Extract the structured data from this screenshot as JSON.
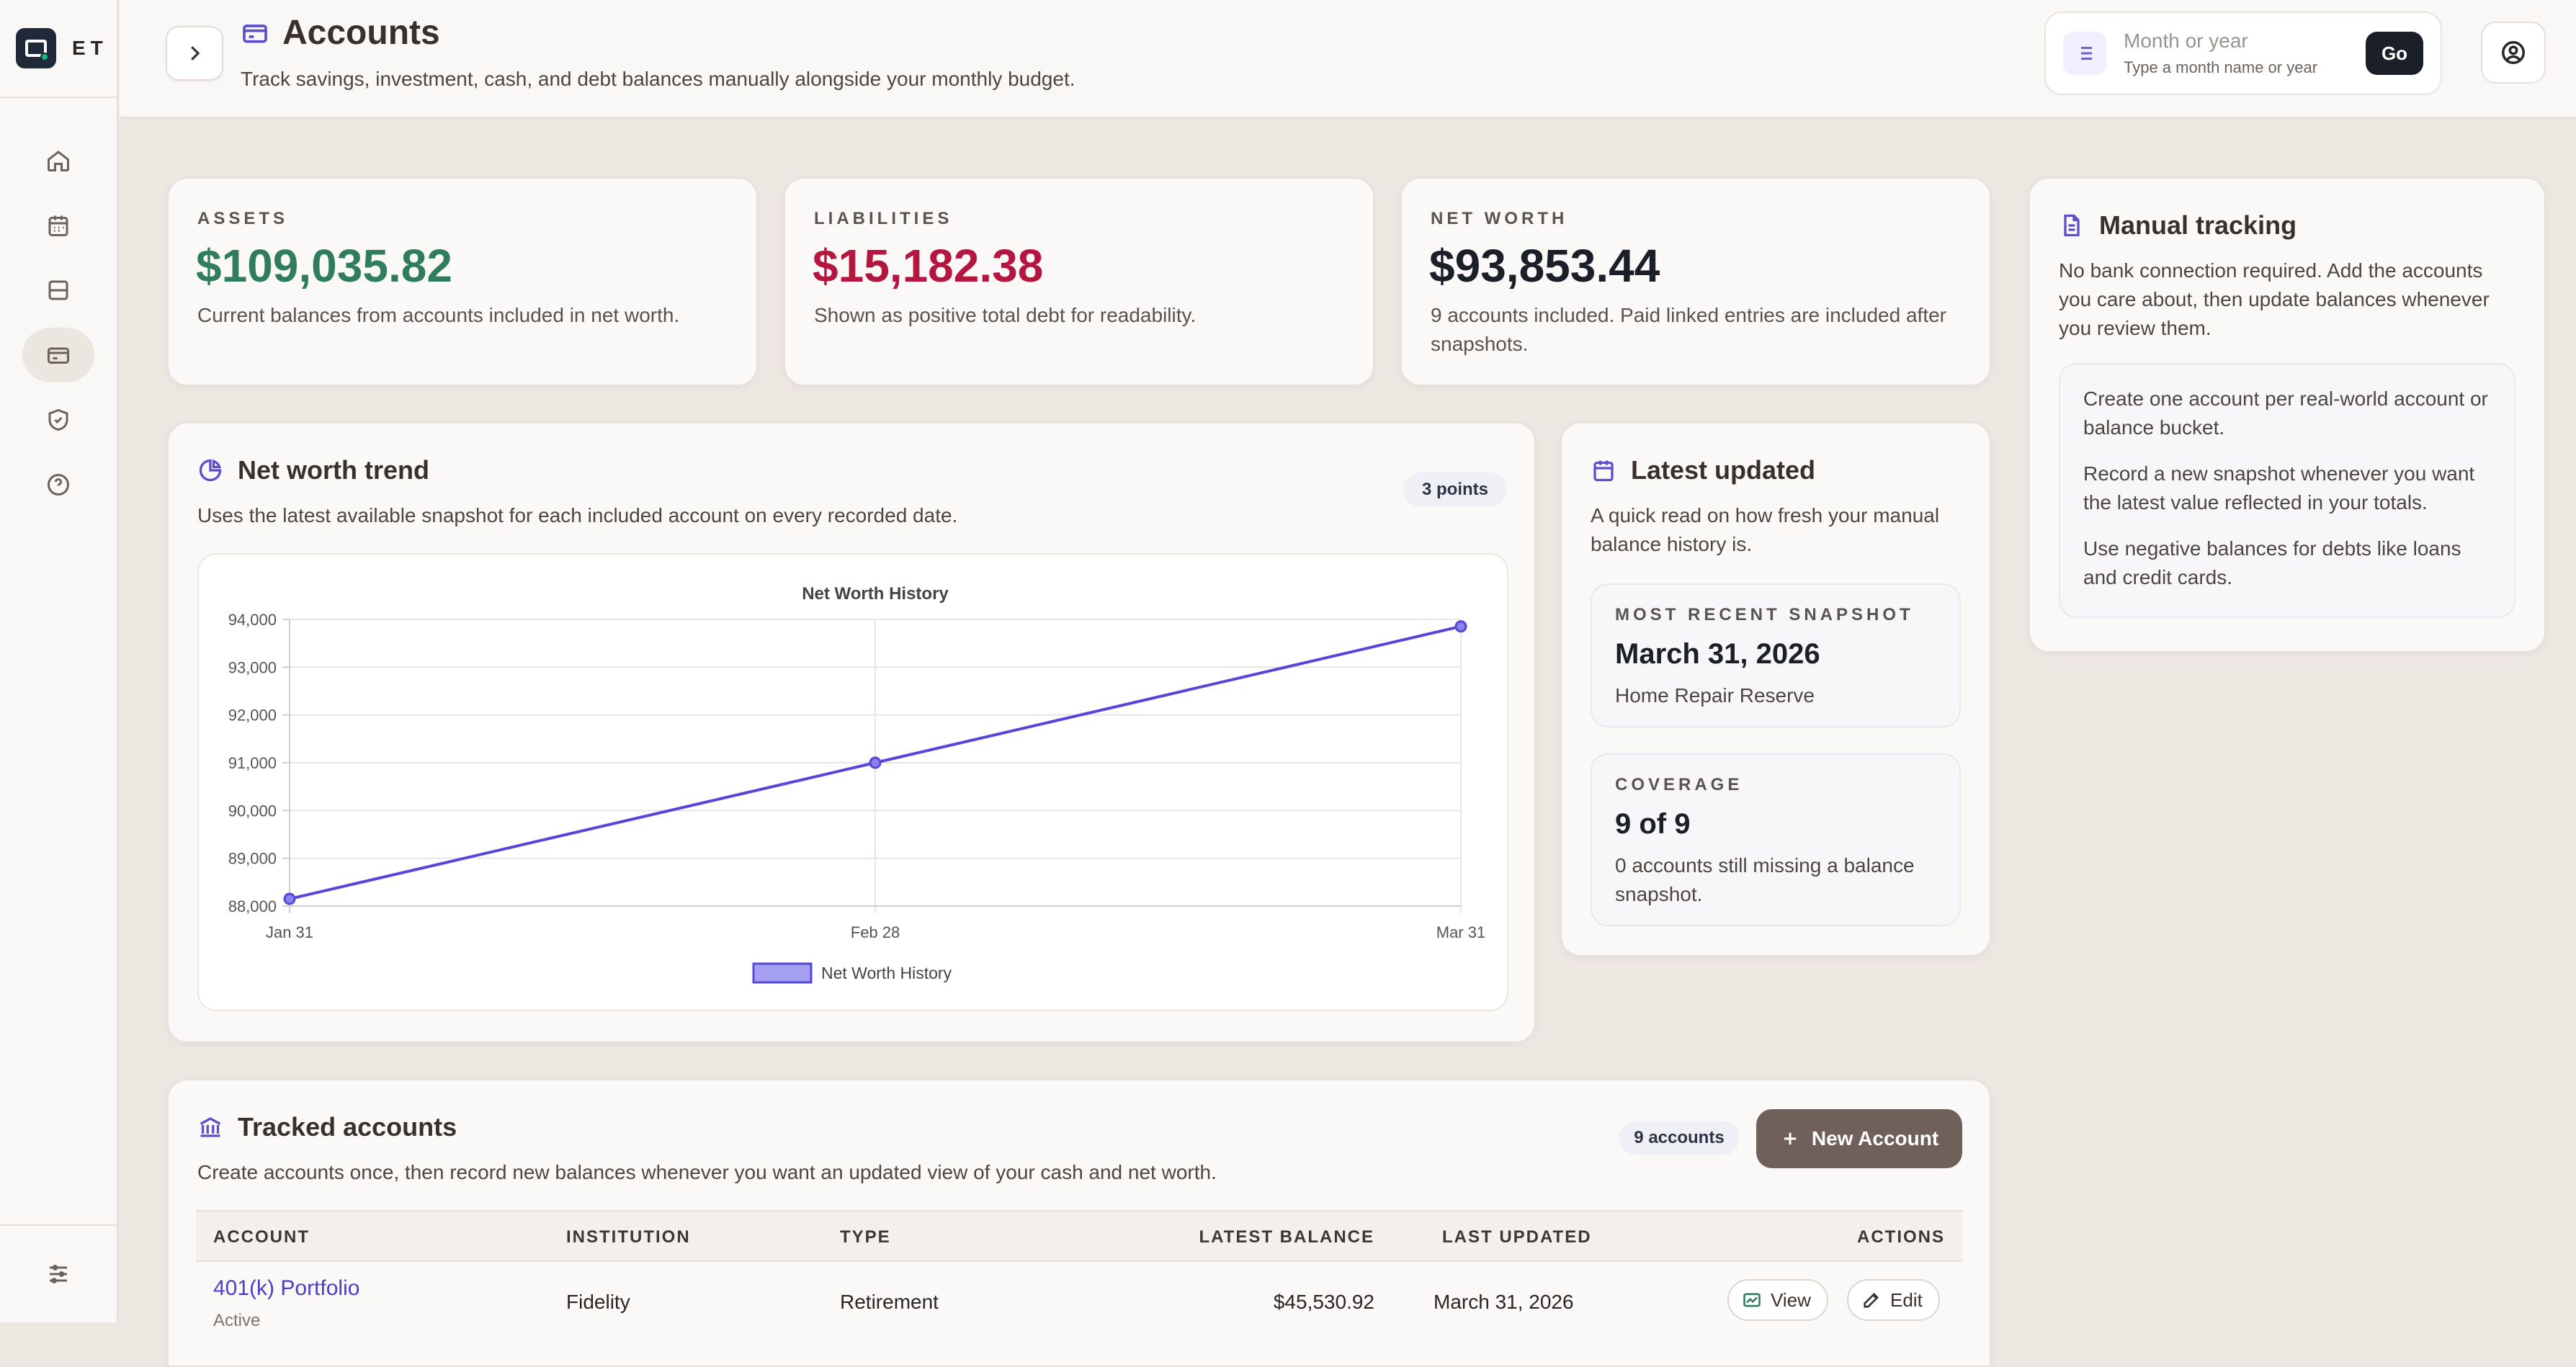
{
  "brand": {
    "name": "ET"
  },
  "sidebar": {
    "items": [
      {
        "icon": "home-icon"
      },
      {
        "icon": "calendar-icon"
      },
      {
        "icon": "inbox-icon"
      },
      {
        "icon": "credit-card-icon",
        "active": true
      },
      {
        "icon": "shield-check-icon"
      },
      {
        "icon": "help-circle-icon"
      }
    ],
    "footer_icon": "sliders-icon"
  },
  "header": {
    "title": "Accounts",
    "subtitle": "Track savings, investment, cash, and debt balances manually alongside your monthly budget.",
    "period_placeholder": "Month or year",
    "period_hint": "Type a month name or year",
    "go_label": "Go"
  },
  "stats": {
    "assets": {
      "label": "ASSETS",
      "value": "$109,035.82",
      "note": "Current balances from accounts included in net worth."
    },
    "liabilities": {
      "label": "LIABILITIES",
      "value": "$15,182.38",
      "note": "Shown as positive total debt for readability."
    },
    "net_worth": {
      "label": "NET WORTH",
      "value": "$93,853.44",
      "note": "9 accounts included. Paid linked entries are included after snapshots."
    }
  },
  "manual": {
    "title": "Manual tracking",
    "desc": "No bank connection required. Add the accounts you care about, then update balances whenever you review them.",
    "tips": [
      "Create one account per real-world account or balance bucket.",
      "Record a new snapshot whenever you want the latest value reflected in your totals.",
      "Use negative balances for debts like loans and credit cards."
    ]
  },
  "trend": {
    "title": "Net worth trend",
    "desc": "Uses the latest available snapshot for each included account on every recorded date.",
    "badge": "3 points"
  },
  "chart_data": {
    "type": "line",
    "title": "Net Worth History",
    "x": [
      "Jan 31",
      "Feb 28",
      "Mar 31"
    ],
    "series": [
      {
        "name": "Net Worth History",
        "values": [
          88150,
          91000,
          93853.44
        ],
        "color": "#5548d9"
      }
    ],
    "ylim": [
      88000,
      94000
    ],
    "yticks": [
      "88,000",
      "89,000",
      "90,000",
      "91,000",
      "92,000",
      "93,000",
      "94,000"
    ],
    "ytick_values": [
      88000,
      89000,
      90000,
      91000,
      92000,
      93000,
      94000
    ],
    "grid": true,
    "legend": "bottom-center"
  },
  "latest": {
    "title": "Latest updated",
    "desc": "A quick read on how fresh your manual balance history is.",
    "recent": {
      "label": "MOST RECENT SNAPSHOT",
      "value": "March 31, 2026",
      "note": "Home Repair Reserve"
    },
    "coverage": {
      "label": "COVERAGE",
      "value": "9 of 9",
      "note": "0 accounts still missing a balance snapshot."
    }
  },
  "tracked": {
    "title": "Tracked accounts",
    "desc": "Create accounts once, then record new balances whenever you want an updated view of your cash and net worth.",
    "badge": "9 accounts",
    "new_label": "New Account",
    "columns": [
      "ACCOUNT",
      "INSTITUTION",
      "TYPE",
      "LATEST BALANCE",
      "LAST UPDATED",
      "ACTIONS"
    ],
    "rows": [
      {
        "account": "401(k) Portfolio",
        "status": "Active",
        "institution": "Fidelity",
        "type": "Retirement",
        "balance": "$45,530.92",
        "updated": "March 31, 2026",
        "view": "View",
        "edit": "Edit"
      }
    ]
  },
  "colors": {
    "accent": "#5548d9",
    "positive": "#2f7d5c",
    "negative": "#b5163f",
    "primary_button": "#6f6159"
  }
}
